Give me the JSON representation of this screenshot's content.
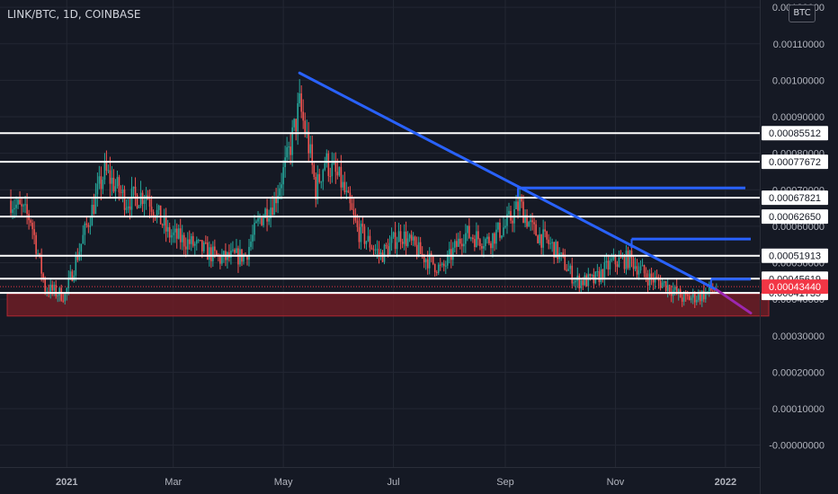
{
  "header": {
    "symbol_title": "LINK/BTC, 1D, COINBASE",
    "currency_button": "BTC"
  },
  "chart_data": {
    "type": "candlestick",
    "title": "LINK/BTC, 1D, COINBASE",
    "xlabel": "",
    "ylabel": "",
    "ylim": [
      -6e-05,
      0.00122
    ],
    "y_tick_labels": [
      "0.00120000",
      "0.00110000",
      "0.00100000",
      "0.00090000",
      "0.00080000",
      "0.00070000",
      "0.00060000",
      "0.00050000",
      "0.00040000",
      "0.00030000",
      "0.00020000",
      "0.00010000",
      "-0.00000000"
    ],
    "y_tick_values": [
      0.0012,
      0.0011,
      0.001,
      0.0009,
      0.0008,
      0.0007,
      0.0006,
      0.0005,
      0.0004,
      0.0003,
      0.0002,
      0.0001,
      0.0
    ],
    "x_range": [
      "2020-11-25",
      "2022-01-20"
    ],
    "x_tick_labels": [
      "2021",
      "Mar",
      "May",
      "Jul",
      "Sep",
      "Nov",
      "2022"
    ],
    "x_tick_values": [
      "2021-01-01",
      "2021-03-01",
      "2021-05-01",
      "2021-07-01",
      "2021-09-01",
      "2021-11-01",
      "2022-01-01"
    ],
    "grid": true,
    "price_path": [
      [
        "2020-12-01",
        0.00067
      ],
      [
        "2020-12-12",
        0.00062
      ],
      [
        "2020-12-20",
        0.00043
      ],
      [
        "2020-12-31",
        0.00041
      ],
      [
        "2021-01-12",
        0.0006
      ],
      [
        "2021-01-22",
        0.00075
      ],
      [
        "2021-02-03",
        0.00067
      ],
      [
        "2021-02-14",
        0.00069
      ],
      [
        "2021-02-26",
        0.00058
      ],
      [
        "2021-03-12",
        0.00055
      ],
      [
        "2021-03-27",
        0.00051
      ],
      [
        "2021-04-10",
        0.00052
      ],
      [
        "2021-04-18",
        0.00062
      ],
      [
        "2021-04-26",
        0.00067
      ],
      [
        "2021-05-03",
        0.00078
      ],
      [
        "2021-05-10",
        0.00093
      ],
      [
        "2021-05-15",
        0.00082
      ],
      [
        "2021-05-19",
        0.0007
      ],
      [
        "2021-05-24",
        0.00078
      ],
      [
        "2021-06-02",
        0.00072
      ],
      [
        "2021-06-11",
        0.00059
      ],
      [
        "2021-06-24",
        0.00052
      ],
      [
        "2021-07-05",
        0.00058
      ],
      [
        "2021-07-17",
        0.00052
      ],
      [
        "2021-07-28",
        0.00048
      ],
      [
        "2021-08-09",
        0.00058
      ],
      [
        "2021-08-22",
        0.00056
      ],
      [
        "2021-09-01",
        0.0006
      ],
      [
        "2021-09-09",
        0.00066
      ],
      [
        "2021-09-16",
        0.00059
      ],
      [
        "2021-09-28",
        0.00054
      ],
      [
        "2021-10-10",
        0.00045
      ],
      [
        "2021-10-20",
        0.00045
      ],
      [
        "2021-10-30",
        0.0005
      ],
      [
        "2021-11-09",
        0.00051
      ],
      [
        "2021-11-19",
        0.00046
      ],
      [
        "2021-11-29",
        0.00044
      ],
      [
        "2021-12-09",
        0.0004
      ],
      [
        "2021-12-18",
        0.00041
      ],
      [
        "2021-12-27",
        0.00043
      ]
    ],
    "last_price": 0.0004344,
    "last_price_label": "0.00043440",
    "horizontal_levels": [
      {
        "value": 0.00085512,
        "label": "0.00085512"
      },
      {
        "value": 0.00077672,
        "label": "0.00077672"
      },
      {
        "value": 0.00067821,
        "label": "0.00067821"
      },
      {
        "value": 0.0006265,
        "label": "0.00062650"
      },
      {
        "value": 0.00051913,
        "label": "0.00051913"
      },
      {
        "value": 0.00045619,
        "label": "0.00045619"
      },
      {
        "value": 0.00041735,
        "label": "0.00041735"
      }
    ],
    "support_zone": {
      "x_start": "2020-11-29",
      "x_end": "2022-01-25",
      "y_low": 0.000354,
      "y_high": 0.000415
    },
    "trendlines": [
      {
        "x1": "2021-05-10",
        "y1": 0.00102,
        "x2": "2021-12-27",
        "y2": 0.000426
      },
      {
        "x1": "2021-12-27",
        "y1": 0.000426,
        "x2": "2022-01-15",
        "y2": 0.000362
      }
    ],
    "resistance_segments": [
      {
        "x1": "2021-09-08",
        "x2": "2022-01-12",
        "y": 0.000705
      },
      {
        "x1": "2021-11-10",
        "x2": "2022-01-15",
        "y": 0.000565
      },
      {
        "x1": "2021-12-24",
        "x2": "2022-01-15",
        "y": 0.000455
      }
    ],
    "colors": {
      "background": "#151924",
      "grid": "#232733",
      "axis_text": "#b2b5be",
      "candle_up": "#26a69a",
      "candle_down": "#ef5350",
      "level_line": "#ffffff",
      "trendline": "#2962ff",
      "trendline_extension": "#9c27b0",
      "zone_fill": "#7a1e26",
      "zone_border": "#b22833",
      "last_price_bg": "#f23645"
    }
  }
}
